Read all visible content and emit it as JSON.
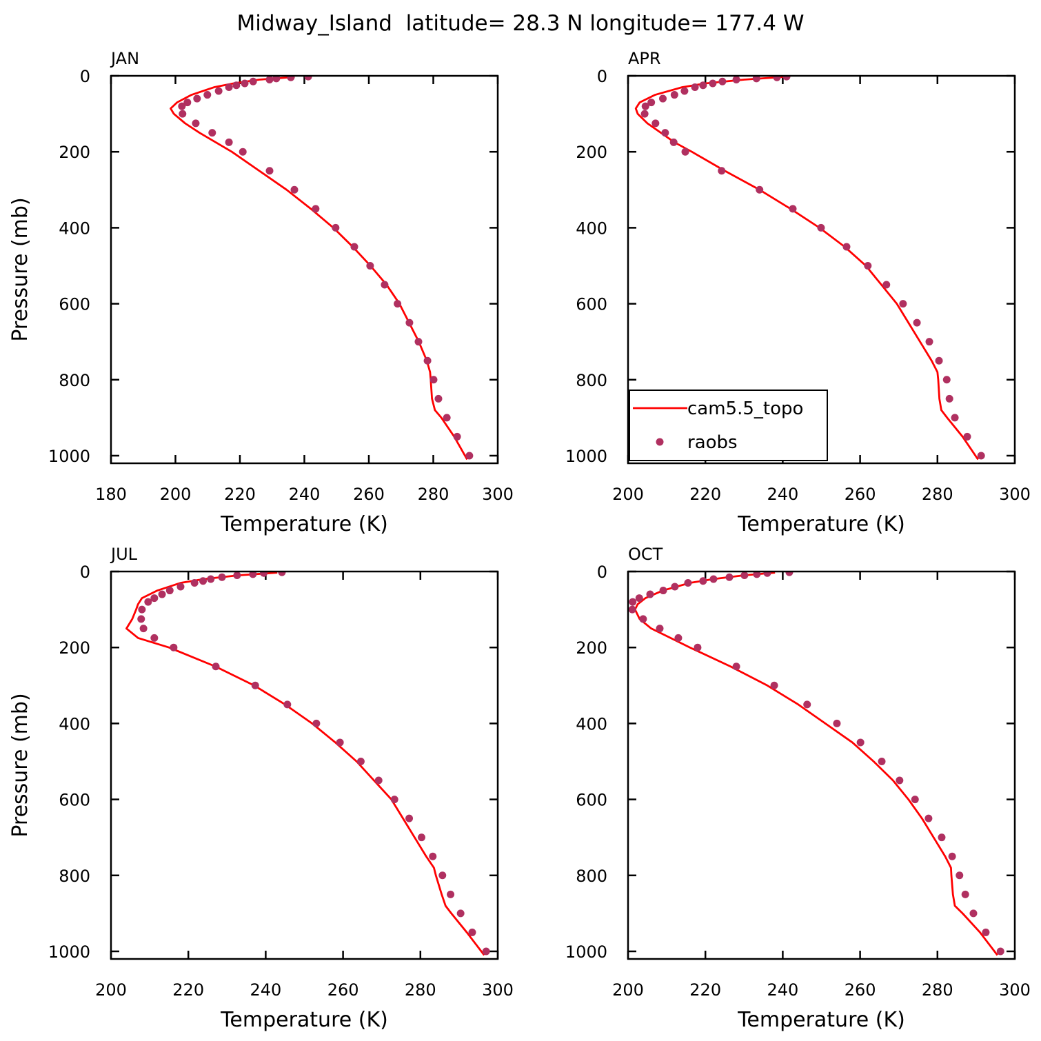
{
  "title": "Midway_Island  latitude= 28.3 N longitude= 177.4 W",
  "chart_data": [
    {
      "type": "line",
      "title": "JAN",
      "x_label": "Temperature (K)",
      "y_label": "Pressure (mb)",
      "xlim": [
        180,
        300
      ],
      "xticks": [
        180,
        200,
        220,
        240,
        260,
        280,
        300
      ],
      "ylim": [
        1020,
        0
      ],
      "yticks": [
        0,
        200,
        400,
        600,
        800,
        1000
      ],
      "series": [
        {
          "color": "#ff0000",
          "mode": "line",
          "x": [
            237,
            226,
            218,
            212,
            205,
            200.5,
            198.5,
            199.5,
            203,
            207.5,
            212.5,
            217.5,
            226,
            234.5,
            242,
            249,
            255,
            260.5,
            265.5,
            269.5,
            272.5,
            275.5,
            278,
            279,
            279.2,
            279.6,
            280.5,
            282.5,
            286.5,
            290.5
          ],
          "y": [
            3,
            10,
            20,
            30,
            50,
            70,
            86,
            100,
            125,
            150,
            175,
            200,
            250,
            300,
            350,
            400,
            450,
            500,
            550,
            600,
            650,
            700,
            750,
            780,
            800,
            850,
            880,
            900,
            950,
            1010
          ]
        },
        {
          "color": "#b03060",
          "mode": "markers",
          "x": [
            241.2,
            235.8,
            231.3,
            229.2,
            224.1,
            221.5,
            218.9,
            216.6,
            213.4,
            209.9,
            206.7,
            203.7,
            202.0,
            202.2,
            206.3,
            211.4,
            216.6,
            220.9,
            229.2,
            236.9,
            243.5,
            249.7,
            255.5,
            260.4,
            264.9,
            268.9,
            272.6,
            275.4,
            278.2,
            280.1,
            281.6,
            284.2,
            287.4,
            291.2
          ],
          "y": [
            2,
            4,
            7,
            10,
            15,
            20,
            25,
            30,
            40,
            50,
            60,
            70,
            80,
            100,
            125,
            150,
            175,
            200,
            250,
            300,
            350,
            400,
            450,
            500,
            550,
            600,
            650,
            700,
            750,
            800,
            850,
            900,
            950,
            1000
          ]
        }
      ]
    },
    {
      "type": "line",
      "title": "APR",
      "x_label": "Temperature (K)",
      "xlim": [
        200,
        300
      ],
      "xticks": [
        200,
        220,
        240,
        260,
        280,
        300
      ],
      "ylim": [
        1020,
        0
      ],
      "yticks": [
        0,
        200,
        400,
        600,
        800,
        1000
      ],
      "legend": "lower left",
      "series": [
        {
          "name": "cam5.5_topo",
          "color": "#ff0000",
          "mode": "line",
          "x": [
            240,
            230,
            220,
            214,
            207,
            203,
            202,
            202.5,
            205,
            208.5,
            212,
            216.5,
            225,
            234,
            242,
            249.5,
            256,
            261.5,
            265.5,
            269.5,
            272.5,
            275.5,
            278.5,
            280,
            280.2,
            280.5,
            281,
            282.5,
            286.5,
            290.5
          ],
          "y": [
            3,
            10,
            20,
            30,
            50,
            70,
            86,
            100,
            125,
            150,
            175,
            200,
            250,
            300,
            350,
            400,
            450,
            500,
            550,
            600,
            650,
            700,
            750,
            780,
            800,
            850,
            880,
            900,
            950,
            1010
          ]
        },
        {
          "name": "raobs",
          "color": "#b03060",
          "mode": "markers",
          "x": [
            241.0,
            238.5,
            233.2,
            228.0,
            224.4,
            221.9,
            219.4,
            217.3,
            214.6,
            212.0,
            209.0,
            206.0,
            204.5,
            204.3,
            207.1,
            209.6,
            211.8,
            214.8,
            224.2,
            234.0,
            242.6,
            249.9,
            256.5,
            262.0,
            266.8,
            271.1,
            274.7,
            277.9,
            280.4,
            282.4,
            283.1,
            284.5,
            287.7,
            291.3
          ],
          "y": [
            2,
            4,
            7,
            10,
            15,
            20,
            25,
            30,
            40,
            50,
            60,
            70,
            80,
            100,
            125,
            150,
            175,
            200,
            250,
            300,
            350,
            400,
            450,
            500,
            550,
            600,
            650,
            700,
            750,
            800,
            850,
            900,
            950,
            1000
          ]
        }
      ]
    },
    {
      "type": "line",
      "title": "JUL",
      "x_label": "Temperature (K)",
      "y_label": "Pressure (mb)",
      "xlim": [
        200,
        300
      ],
      "xticks": [
        200,
        220,
        240,
        260,
        280,
        300
      ],
      "ylim": [
        1020,
        0
      ],
      "yticks": [
        0,
        200,
        400,
        600,
        800,
        1000
      ],
      "series": [
        {
          "color": "#ff0000",
          "mode": "line",
          "x": [
            243,
            233,
            224,
            218,
            212,
            208,
            207,
            206.5,
            205.5,
            204,
            207,
            215,
            227,
            237,
            245,
            252,
            258,
            263.5,
            268,
            272.5,
            275.5,
            278.5,
            281.5,
            283.5,
            284,
            285.5,
            286.5,
            288,
            292,
            296.5
          ],
          "y": [
            3,
            10,
            20,
            30,
            50,
            70,
            86,
            100,
            125,
            150,
            175,
            200,
            250,
            300,
            350,
            400,
            450,
            500,
            550,
            600,
            650,
            700,
            750,
            780,
            800,
            850,
            880,
            900,
            950,
            1010
          ]
        },
        {
          "color": "#b03060",
          "mode": "markers",
          "x": [
            244.2,
            239.5,
            236.7,
            232.6,
            228.7,
            225.8,
            223.8,
            221.6,
            218.0,
            215.2,
            213.2,
            211.2,
            209.6,
            208.0,
            207.8,
            208.4,
            211.2,
            216.2,
            227.1,
            237.3,
            245.6,
            253.1,
            259.2,
            264.6,
            269.2,
            273.3,
            277.1,
            280.3,
            283.2,
            285.7,
            287.8,
            290.4,
            293.4,
            297
          ],
          "y": [
            2,
            4,
            7,
            10,
            15,
            20,
            25,
            30,
            40,
            50,
            60,
            70,
            80,
            100,
            125,
            150,
            175,
            200,
            250,
            300,
            350,
            400,
            450,
            500,
            550,
            600,
            650,
            700,
            750,
            800,
            850,
            900,
            950,
            1000
          ]
        }
      ]
    },
    {
      "type": "line",
      "title": "OCT",
      "x_label": "Temperature (K)",
      "xlim": [
        200,
        300
      ],
      "xticks": [
        200,
        220,
        240,
        260,
        280,
        300
      ],
      "ylim": [
        1020,
        0
      ],
      "yticks": [
        0,
        200,
        400,
        600,
        800,
        1000
      ],
      "series": [
        {
          "color": "#ff0000",
          "mode": "line",
          "x": [
            238,
            230,
            222,
            216,
            209,
            204.5,
            202.5,
            201.8,
            203,
            206,
            211,
            216,
            226.5,
            236,
            244,
            251,
            258,
            263.5,
            268.5,
            272.5,
            276,
            279,
            282,
            283.5,
            283.6,
            284,
            284.5,
            286.5,
            291,
            295.5
          ],
          "y": [
            3,
            10,
            20,
            30,
            50,
            70,
            86,
            100,
            125,
            150,
            175,
            200,
            250,
            300,
            350,
            400,
            450,
            500,
            550,
            600,
            650,
            700,
            750,
            780,
            800,
            850,
            880,
            900,
            950,
            1010
          ]
        },
        {
          "color": "#b03060",
          "mode": "markers",
          "x": [
            241.7,
            236.0,
            233.3,
            230.1,
            226.2,
            222.1,
            219.4,
            215.5,
            212.1,
            209.1,
            205.7,
            202.9,
            201.2,
            201.1,
            203.9,
            208.2,
            213.0,
            218.0,
            228.0,
            237.8,
            246.3,
            254.0,
            260.1,
            265.6,
            270.2,
            274.2,
            277.7,
            281.1,
            283.8,
            285.7,
            287.2,
            289.3,
            292.5,
            296.3
          ],
          "y": [
            2,
            4,
            7,
            10,
            15,
            20,
            25,
            30,
            40,
            50,
            60,
            70,
            80,
            100,
            125,
            150,
            175,
            200,
            250,
            300,
            350,
            400,
            450,
            500,
            550,
            600,
            650,
            700,
            750,
            800,
            850,
            900,
            950,
            1000
          ]
        }
      ]
    }
  ]
}
